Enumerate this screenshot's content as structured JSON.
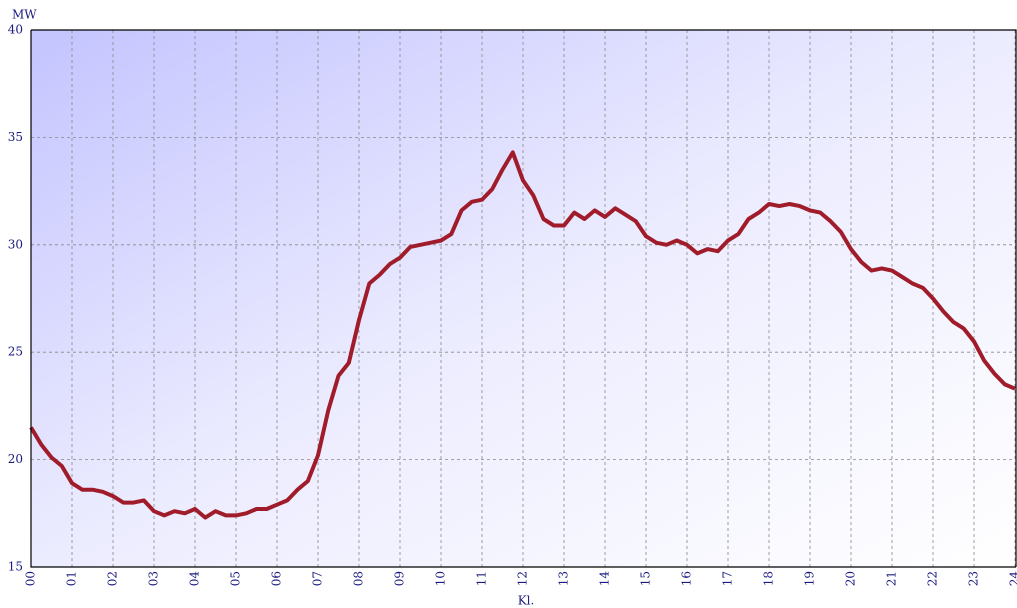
{
  "chart_data": {
    "type": "line",
    "y_unit": "MW",
    "x_label": "Kl.",
    "x": [
      0,
      0.25,
      0.5,
      0.75,
      1,
      1.25,
      1.5,
      1.75,
      2,
      2.25,
      2.5,
      2.75,
      3,
      3.25,
      3.5,
      3.75,
      4,
      4.25,
      4.5,
      4.75,
      5,
      5.25,
      5.5,
      5.75,
      6,
      6.25,
      6.5,
      6.75,
      7,
      7.25,
      7.5,
      7.75,
      8,
      8.25,
      8.5,
      8.75,
      9,
      9.25,
      9.5,
      9.75,
      10,
      10.25,
      10.5,
      10.75,
      11,
      11.25,
      11.5,
      11.75,
      12,
      12.25,
      12.5,
      12.75,
      13,
      13.25,
      13.5,
      13.75,
      14,
      14.25,
      14.5,
      14.75,
      15,
      15.25,
      15.5,
      15.75,
      16,
      16.25,
      16.5,
      16.75,
      17,
      17.25,
      17.5,
      17.75,
      18,
      18.25,
      18.5,
      18.75,
      19,
      19.25,
      19.5,
      19.75,
      20,
      20.25,
      20.5,
      20.75,
      21,
      21.25,
      21.5,
      21.75,
      22,
      22.25,
      22.5,
      22.75,
      23,
      23.25,
      23.5,
      23.75,
      24
    ],
    "series": [
      {
        "color": "#a01c2a",
        "values": [
          21.5,
          20.7,
          20.1,
          19.7,
          18.9,
          18.6,
          18.6,
          18.5,
          18.3,
          18.0,
          18.0,
          18.1,
          17.6,
          17.4,
          17.6,
          17.5,
          17.7,
          17.3,
          17.6,
          17.4,
          17.4,
          17.5,
          17.7,
          17.7,
          17.9,
          18.1,
          18.6,
          19.0,
          20.2,
          22.3,
          23.9,
          24.5,
          26.5,
          28.2,
          28.6,
          29.1,
          29.4,
          29.9,
          30.0,
          30.1,
          30.2,
          30.5,
          31.6,
          32.0,
          32.1,
          32.6,
          33.5,
          34.3,
          33.0,
          32.3,
          31.2,
          30.9,
          30.9,
          31.5,
          31.2,
          31.6,
          31.3,
          31.7,
          31.4,
          31.1,
          30.4,
          30.1,
          30.0,
          30.2,
          30.0,
          29.6,
          29.8,
          29.7,
          30.2,
          30.5,
          31.2,
          31.5,
          31.9,
          31.8,
          31.9,
          31.8,
          31.6,
          31.5,
          31.1,
          30.6,
          29.8,
          29.2,
          28.8,
          28.9,
          28.8,
          28.5,
          28.2,
          28.0,
          27.5,
          26.9,
          26.4,
          26.1,
          25.5,
          24.6,
          24.0,
          23.5,
          23.3
        ]
      }
    ],
    "xlim": [
      0,
      24
    ],
    "xticks": [
      {
        "value": 0,
        "label": "00"
      },
      {
        "value": 1,
        "label": "01"
      },
      {
        "value": 2,
        "label": "02"
      },
      {
        "value": 3,
        "label": "03"
      },
      {
        "value": 4,
        "label": "04"
      },
      {
        "value": 5,
        "label": "05"
      },
      {
        "value": 6,
        "label": "06"
      },
      {
        "value": 7,
        "label": "07"
      },
      {
        "value": 8,
        "label": "08"
      },
      {
        "value": 9,
        "label": "09"
      },
      10,
      11,
      12,
      13,
      14,
      15,
      16,
      17,
      18,
      19,
      20,
      21,
      22,
      23,
      24
    ],
    "ylim": [
      15,
      40
    ],
    "yticks": [
      15,
      20,
      25,
      30,
      35,
      40
    ],
    "grid": true
  }
}
